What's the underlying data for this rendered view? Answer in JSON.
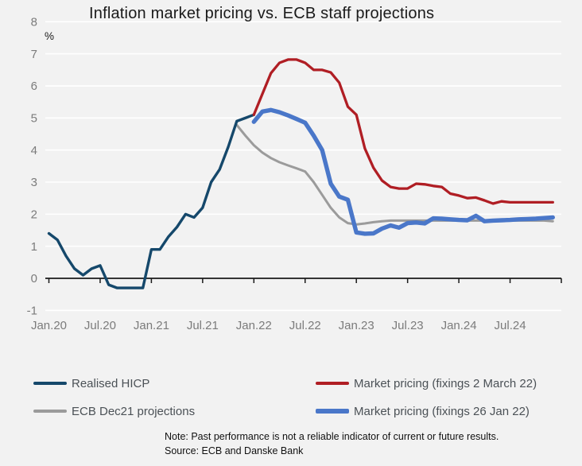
{
  "title": "Inflation market pricing vs. ECB staff projections",
  "axis": {
    "unit_label": "%",
    "y_tick_labels": [
      "8",
      "7",
      "6",
      "5",
      "4",
      "3",
      "2",
      "1",
      "0",
      "-1"
    ],
    "y_ticks": [
      8,
      7,
      6,
      5,
      4,
      3,
      2,
      1,
      0,
      -1
    ],
    "x_tick_labels": [
      "Jan.20",
      "Jul.20",
      "Jan.21",
      "Jul.21",
      "Jan.22",
      "Jul.22",
      "Jan.23",
      "Jul.23",
      "Jan.24",
      "Jul.24"
    ],
    "label_color": "#7b7b7b",
    "axis_color": "#1a1a1a",
    "gridline_color": "#ffffff"
  },
  "legend": {
    "items": [
      {
        "label": "Realised HICP",
        "color": "#15486B",
        "weight": 3.5
      },
      {
        "label": "Market pricing (fixings 2 March 22)",
        "color": "#B01E24",
        "weight": 3.5
      },
      {
        "label": "ECB Dec21 projections",
        "color": "#9B9B9B",
        "weight": 3.5
      },
      {
        "label": "Market pricing (fixings 26 Jan 22)",
        "color": "#4A77C9",
        "weight": 6
      }
    ]
  },
  "footnote": {
    "note": "Note: Past performance is not a reliable indicator of current or future results.",
    "source": "Source: ECB and Danske Bank"
  },
  "colors": {
    "background": "#F2F2F2",
    "navy": "#15486B",
    "red": "#B01E24",
    "blue": "#4A77C9",
    "gray": "#9B9B9B"
  },
  "chart_data": {
    "type": "line",
    "title": "Inflation market pricing vs. ECB staff projections",
    "ylabel": "%",
    "ylim": [
      -1,
      8
    ],
    "grid": "horizontal white gridlines on light gray background, black zero axis with down ticks every 6 months",
    "legend_position": "bottom, two columns",
    "x_unit": "months since Jan 2020, axis spans Jan 2020 to Dec 2024 (ticks every 6 months)",
    "x_month_span": 60,
    "series": [
      {
        "name": "ECB Dec21 projections",
        "color": "#9B9B9B",
        "width": 3,
        "start_month_index": 22,
        "monthly_values": [
          4.78,
          4.45,
          4.15,
          3.92,
          3.75,
          3.62,
          3.52,
          3.43,
          3.33,
          3.0,
          2.6,
          2.2,
          1.9,
          1.72,
          1.68,
          1.71,
          1.75,
          1.78,
          1.8,
          1.8,
          1.8,
          1.8,
          1.8,
          1.8,
          1.8,
          1.8,
          1.8,
          1.8,
          1.8,
          1.8,
          1.8,
          1.8,
          1.8,
          1.8,
          1.8,
          1.8,
          1.8,
          1.78
        ]
      },
      {
        "name": "Market pricing (fixings 26 Jan 22)",
        "color": "#4A77C9",
        "width": 5.4,
        "start_month_index": 24,
        "monthly_values": [
          4.88,
          5.2,
          5.25,
          5.18,
          5.08,
          4.97,
          4.85,
          4.45,
          4.0,
          2.95,
          2.55,
          2.45,
          1.43,
          1.39,
          1.4,
          1.55,
          1.65,
          1.58,
          1.72,
          1.74,
          1.71,
          1.87,
          1.86,
          1.84,
          1.82,
          1.81,
          1.95,
          1.78,
          1.8,
          1.81,
          1.82,
          1.84,
          1.85,
          1.86,
          1.88,
          1.9
        ]
      },
      {
        "name": "Realised HICP",
        "color": "#15486B",
        "width": 3.4,
        "start_month_index": 0,
        "monthly_values": [
          1.4,
          1.2,
          0.7,
          0.3,
          0.1,
          0.3,
          0.4,
          -0.2,
          -0.3,
          -0.3,
          -0.3,
          -0.3,
          0.9,
          0.9,
          1.3,
          1.6,
          2.0,
          1.9,
          2.2,
          3.0,
          3.4,
          4.1,
          4.9,
          5.0,
          5.1
        ]
      },
      {
        "name": "Market pricing (fixings 2 March 22)",
        "color": "#B01E24",
        "width": 3.3,
        "start_month_index": 24,
        "monthly_values": [
          5.1,
          5.75,
          6.4,
          6.72,
          6.82,
          6.82,
          6.72,
          6.5,
          6.5,
          6.42,
          6.1,
          5.35,
          5.1,
          4.05,
          3.45,
          3.05,
          2.85,
          2.8,
          2.8,
          2.95,
          2.93,
          2.88,
          2.85,
          2.64,
          2.58,
          2.5,
          2.52,
          2.43,
          2.33,
          2.4,
          2.37,
          2.37,
          2.37,
          2.37,
          2.37,
          2.37
        ]
      }
    ]
  }
}
